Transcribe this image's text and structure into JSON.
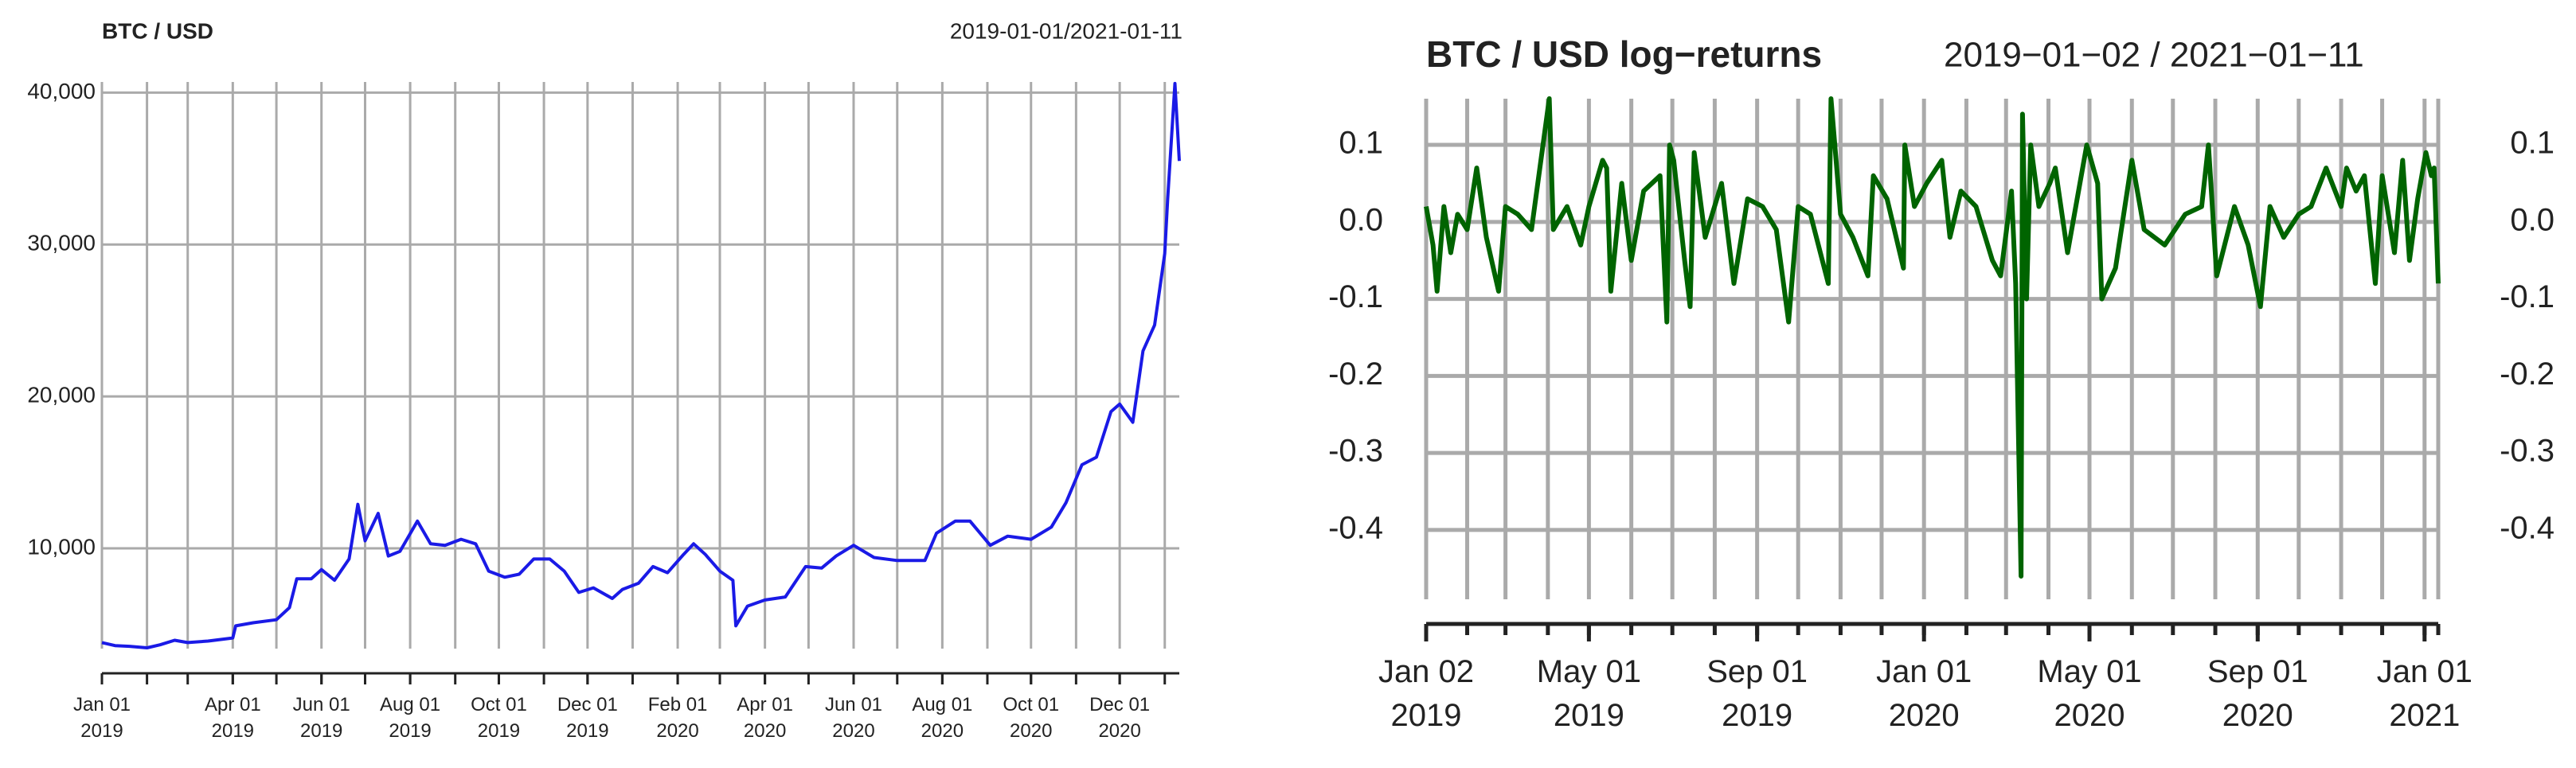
{
  "chart_data": [
    {
      "type": "line",
      "title": "BTC / USD",
      "subtitle": "2019-01-01/2021-01-11",
      "xlim": [
        "2019-01-01",
        "2021-01-11"
      ],
      "ylim": [
        3400,
        40700
      ],
      "yticks": [
        {
          "value": 10000,
          "label": "10,000"
        },
        {
          "value": 20000,
          "label": "20,000"
        },
        {
          "value": 30000,
          "label": "30,000"
        },
        {
          "value": 40000,
          "label": "40,000"
        }
      ],
      "xticks": [
        {
          "value": "2019-01-01",
          "label": "Jan 01\n2019"
        },
        {
          "value": "2019-04-01",
          "label": "Apr 01\n2019"
        },
        {
          "value": "2019-06-01",
          "label": "Jun 01\n2019"
        },
        {
          "value": "2019-08-01",
          "label": "Aug 01\n2019"
        },
        {
          "value": "2019-10-01",
          "label": "Oct 01\n2019"
        },
        {
          "value": "2019-12-01",
          "label": "Dec 01\n2019"
        },
        {
          "value": "2020-02-01",
          "label": "Feb 01\n2020"
        },
        {
          "value": "2020-04-01",
          "label": "Apr 01\n2020"
        },
        {
          "value": "2020-06-01",
          "label": "Jun 01\n2020"
        },
        {
          "value": "2020-08-01",
          "label": "Aug 01\n2020"
        },
        {
          "value": "2020-10-01",
          "label": "Oct 01\n2020"
        },
        {
          "value": "2020-12-01",
          "label": "Dec 01\n2020"
        }
      ],
      "xgrid": [
        "2019-01-01",
        "2019-02-01",
        "2019-03-01",
        "2019-04-01",
        "2019-05-01",
        "2019-06-01",
        "2019-07-01",
        "2019-08-01",
        "2019-09-01",
        "2019-10-01",
        "2019-11-01",
        "2019-12-01",
        "2020-01-01",
        "2020-02-01",
        "2020-03-01",
        "2020-04-01",
        "2020-05-01",
        "2020-06-01",
        "2020-07-01",
        "2020-08-01",
        "2020-09-01",
        "2020-10-01",
        "2020-11-01",
        "2020-12-01",
        "2021-01-01"
      ],
      "grid": true,
      "series": [
        {
          "name": "BTC / USD",
          "color": "#1a1ae6",
          "x": [
            "2019-01-01",
            "2019-01-10",
            "2019-01-20",
            "2019-02-01",
            "2019-02-10",
            "2019-02-20",
            "2019-03-01",
            "2019-03-15",
            "2019-04-01",
            "2019-04-03",
            "2019-04-15",
            "2019-05-01",
            "2019-05-10",
            "2019-05-15",
            "2019-05-25",
            "2019-06-01",
            "2019-06-10",
            "2019-06-20",
            "2019-06-26",
            "2019-07-01",
            "2019-07-10",
            "2019-07-17",
            "2019-07-25",
            "2019-08-06",
            "2019-08-15",
            "2019-08-25",
            "2019-09-05",
            "2019-09-15",
            "2019-09-24",
            "2019-10-05",
            "2019-10-15",
            "2019-10-25",
            "2019-11-05",
            "2019-11-15",
            "2019-11-25",
            "2019-12-05",
            "2019-12-18",
            "2019-12-25",
            "2020-01-05",
            "2020-01-15",
            "2020-01-25",
            "2020-02-05",
            "2020-02-12",
            "2020-02-20",
            "2020-03-01",
            "2020-03-10",
            "2020-03-12",
            "2020-03-20",
            "2020-04-01",
            "2020-04-15",
            "2020-04-29",
            "2020-05-10",
            "2020-05-20",
            "2020-06-01",
            "2020-06-15",
            "2020-07-01",
            "2020-07-20",
            "2020-07-28",
            "2020-08-10",
            "2020-08-20",
            "2020-09-03",
            "2020-09-15",
            "2020-10-01",
            "2020-10-15",
            "2020-10-25",
            "2020-11-05",
            "2020-11-15",
            "2020-11-25",
            "2020-12-01",
            "2020-12-10",
            "2020-12-17",
            "2020-12-25",
            "2021-01-01",
            "2021-01-03",
            "2021-01-08",
            "2021-01-11"
          ],
          "values": [
            3800,
            3600,
            3550,
            3450,
            3650,
            3950,
            3800,
            3900,
            4100,
            4900,
            5100,
            5300,
            6100,
            8000,
            8000,
            8600,
            7900,
            9300,
            12900,
            10500,
            12300,
            9500,
            9800,
            11800,
            10300,
            10200,
            10600,
            10300,
            8500,
            8100,
            8300,
            9300,
            9300,
            8500,
            7100,
            7400,
            6700,
            7300,
            7700,
            8800,
            8400,
            9600,
            10300,
            9600,
            8500,
            7900,
            4900,
            6200,
            6600,
            6800,
            8800,
            8700,
            9500,
            10200,
            9400,
            9200,
            9200,
            11000,
            11800,
            11800,
            10200,
            10800,
            10600,
            11400,
            13000,
            15500,
            16000,
            19000,
            19500,
            18300,
            23000,
            24700,
            29400,
            33000,
            40600,
            35500
          ]
        }
      ]
    },
    {
      "type": "line",
      "title": "BTC / USD log−returns",
      "subtitle": "2019−01−02 / 2021−01−11",
      "xlim": [
        "2019-01-02",
        "2021-01-11"
      ],
      "ylim": [
        -0.49,
        0.16
      ],
      "yticks": [
        -0.4,
        -0.3,
        -0.2,
        -0.1,
        {
          "value": 0,
          "label": "0.0"
        },
        0.1
      ],
      "xticks": [
        {
          "value": "2019-01-02",
          "label": "Jan 02\n2019"
        },
        {
          "value": "2019-05-01",
          "label": "May 01\n2019"
        },
        {
          "value": "2019-09-01",
          "label": "Sep 01\n2019"
        },
        {
          "value": "2020-01-01",
          "label": "Jan 01\n2020"
        },
        {
          "value": "2020-05-01",
          "label": "May 01\n2020"
        },
        {
          "value": "2020-09-01",
          "label": "Sep 01\n2020"
        },
        {
          "value": "2021-01-01",
          "label": "Jan 01\n2021"
        }
      ],
      "xgrid": [
        "2019-01-02",
        "2019-02-01",
        "2019-03-01",
        "2019-04-01",
        "2019-05-01",
        "2019-06-01",
        "2019-07-01",
        "2019-08-01",
        "2019-09-01",
        "2019-10-01",
        "2019-11-01",
        "2019-12-01",
        "2020-01-01",
        "2020-02-01",
        "2020-03-01",
        "2020-04-01",
        "2020-05-01",
        "2020-06-01",
        "2020-07-01",
        "2020-08-01",
        "2020-09-01",
        "2020-10-01",
        "2020-11-01",
        "2020-12-01",
        "2021-01-01",
        "2021-01-11"
      ],
      "grid": true,
      "right_axis": true,
      "series": [
        {
          "name": "log-returns",
          "color": "#006400",
          "x": [
            "2019-01-02",
            "2019-01-07",
            "2019-01-10",
            "2019-01-15",
            "2019-01-20",
            "2019-01-25",
            "2019-02-01",
            "2019-02-08",
            "2019-02-15",
            "2019-02-24",
            "2019-03-01",
            "2019-03-10",
            "2019-03-20",
            "2019-04-02",
            "2019-04-05",
            "2019-04-15",
            "2019-04-25",
            "2019-05-01",
            "2019-05-11",
            "2019-05-14",
            "2019-05-17",
            "2019-05-25",
            "2019-06-01",
            "2019-06-10",
            "2019-06-22",
            "2019-06-27",
            "2019-06-29",
            "2019-07-02",
            "2019-07-10",
            "2019-07-14",
            "2019-07-17",
            "2019-07-25",
            "2019-08-06",
            "2019-08-15",
            "2019-08-25",
            "2019-09-05",
            "2019-09-15",
            "2019-09-24",
            "2019-10-01",
            "2019-10-10",
            "2019-10-23",
            "2019-10-25",
            "2019-11-01",
            "2019-11-10",
            "2019-11-21",
            "2019-11-25",
            "2019-12-05",
            "2019-12-17",
            "2019-12-18",
            "2019-12-25",
            "2020-01-03",
            "2020-01-14",
            "2020-01-20",
            "2020-01-28",
            "2020-02-08",
            "2020-02-20",
            "2020-02-26",
            "2020-03-05",
            "2020-03-08",
            "2020-03-12",
            "2020-03-13",
            "2020-03-16",
            "2020-03-19",
            "2020-03-25",
            "2020-04-02",
            "2020-04-06",
            "2020-04-15",
            "2020-04-29",
            "2020-05-07",
            "2020-05-10",
            "2020-05-20",
            "2020-06-01",
            "2020-06-10",
            "2020-06-25",
            "2020-07-10",
            "2020-07-22",
            "2020-07-27",
            "2020-08-02",
            "2020-08-15",
            "2020-08-25",
            "2020-09-03",
            "2020-09-10",
            "2020-09-20",
            "2020-10-01",
            "2020-10-10",
            "2020-10-21",
            "2020-11-01",
            "2020-11-05",
            "2020-11-12",
            "2020-11-18",
            "2020-11-26",
            "2020-12-01",
            "2020-12-10",
            "2020-12-16",
            "2020-12-21",
            "2020-12-27",
            "2021-01-02",
            "2021-01-06",
            "2021-01-08",
            "2021-01-11"
          ],
          "values": [
            0.02,
            -0.03,
            -0.09,
            0.02,
            -0.04,
            0.01,
            -0.01,
            0.07,
            -0.02,
            -0.09,
            0.02,
            0.01,
            -0.01,
            0.16,
            -0.01,
            0.02,
            -0.03,
            0.02,
            0.08,
            0.07,
            -0.09,
            0.05,
            -0.05,
            0.04,
            0.06,
            -0.13,
            0.1,
            0.08,
            -0.05,
            -0.11,
            0.09,
            -0.02,
            0.05,
            -0.08,
            0.03,
            0.02,
            -0.01,
            -0.13,
            0.02,
            0.01,
            -0.08,
            0.16,
            0.01,
            -0.02,
            -0.07,
            0.06,
            0.03,
            -0.06,
            0.1,
            0.02,
            0.05,
            0.08,
            -0.02,
            0.04,
            0.02,
            -0.05,
            -0.07,
            0.04,
            -0.08,
            -0.46,
            0.14,
            -0.1,
            0.1,
            0.02,
            0.05,
            0.07,
            -0.04,
            0.1,
            0.05,
            -0.1,
            -0.06,
            0.08,
            -0.01,
            -0.03,
            0.01,
            0.02,
            0.1,
            -0.07,
            0.02,
            -0.03,
            -0.11,
            0.02,
            -0.02,
            0.01,
            0.02,
            0.07,
            0.02,
            0.07,
            0.04,
            0.06,
            -0.08,
            0.06,
            -0.04,
            0.08,
            -0.05,
            0.03,
            0.09,
            0.06,
            0.07,
            -0.08
          ]
        }
      ]
    }
  ]
}
